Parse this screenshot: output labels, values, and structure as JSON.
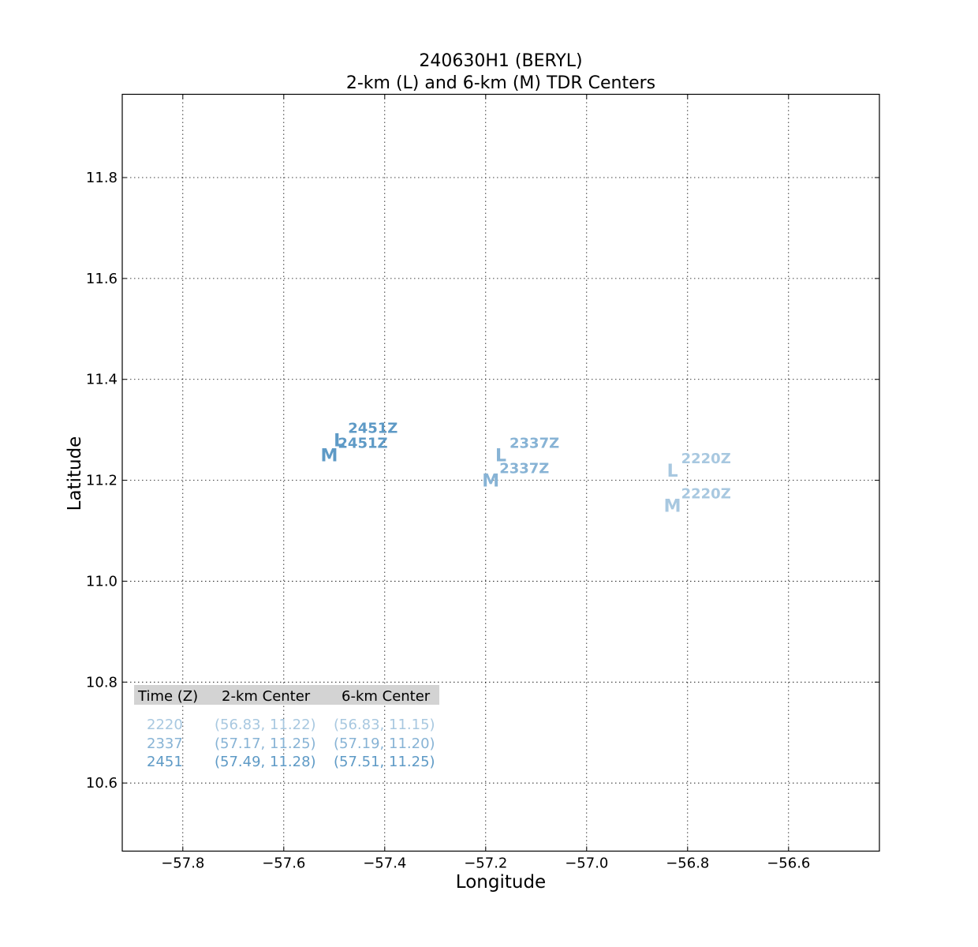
{
  "chart_data": {
    "type": "scatter",
    "title": "240630H1 (BERYL)",
    "subtitle": "2-km (L) and 6-km (M) TDR Centers",
    "xlabel": "Longitude",
    "ylabel": "Latitude",
    "xlim": [
      -57.92,
      -56.42
    ],
    "ylim": [
      10.465,
      11.965
    ],
    "xticks": [
      -57.8,
      -57.6,
      -57.4,
      -57.2,
      -57.0,
      -56.8,
      -56.6
    ],
    "xtick_labels": [
      "−57.8",
      "−57.6",
      "−57.4",
      "−57.2",
      "−57.0",
      "−56.8",
      "−56.6"
    ],
    "yticks": [
      10.6,
      10.8,
      11.0,
      11.2,
      11.4,
      11.6,
      11.8
    ],
    "ytick_labels": [
      "10.6",
      "10.8",
      "11.0",
      "11.2",
      "11.4",
      "11.6",
      "11.8"
    ],
    "grid": true,
    "centers": [
      {
        "time": "2220",
        "color": "#a8c8e0",
        "low": {
          "marker": "L",
          "label": "2220Z",
          "x": -56.83,
          "y": 11.22
        },
        "mid": {
          "marker": "M",
          "label": "2220Z",
          "x": -56.83,
          "y": 11.15
        }
      },
      {
        "time": "2337",
        "color": "#87b3d5",
        "low": {
          "marker": "L",
          "label": "2337Z",
          "x": -57.17,
          "y": 11.25
        },
        "mid": {
          "marker": "M",
          "label": "2337Z",
          "x": -57.19,
          "y": 11.2
        }
      },
      {
        "time": "2451",
        "color": "#5e9ac6",
        "low": {
          "marker": "L",
          "label": "2451Z",
          "x": -57.49,
          "y": 11.28
        },
        "mid": {
          "marker": "M",
          "label": "2451Z",
          "x": -57.51,
          "y": 11.25
        }
      }
    ],
    "table": {
      "headers": [
        "Time (Z)",
        "2-km Center",
        "6-km Center"
      ],
      "rows": [
        {
          "time": "2220",
          "low": "(56.83, 11.22)",
          "mid": "(56.83, 11.15)",
          "color": "#a8c8e0"
        },
        {
          "time": "2337",
          "low": "(57.17, 11.25)",
          "mid": "(57.19, 11.20)",
          "color": "#87b3d5"
        },
        {
          "time": "2451",
          "low": "(57.49, 11.28)",
          "mid": "(57.51, 11.25)",
          "color": "#5e9ac6"
        }
      ]
    }
  }
}
